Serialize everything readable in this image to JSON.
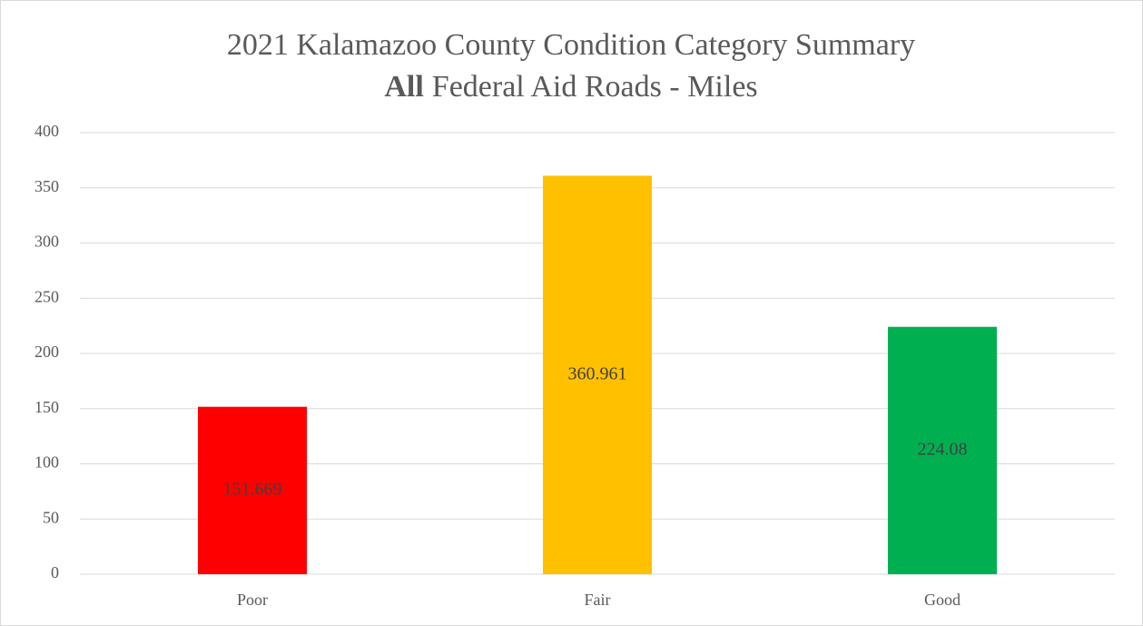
{
  "chart_data": {
    "type": "bar",
    "title": "2021 Kalamazoo County Condition Category Summary",
    "subtitle": [
      "All",
      "Federal Aid Roads - Miles"
    ],
    "categories": [
      "Poor",
      "Fair",
      "Good"
    ],
    "values": [
      151.669,
      360.961,
      224.08
    ],
    "colors": [
      "#ff0000",
      "#ffc000",
      "#00b050"
    ],
    "ylim": [
      0,
      400
    ],
    "yticks": [
      0,
      50,
      100,
      150,
      200,
      250,
      300,
      350,
      400
    ],
    "grid": true,
    "data_labels": true
  }
}
